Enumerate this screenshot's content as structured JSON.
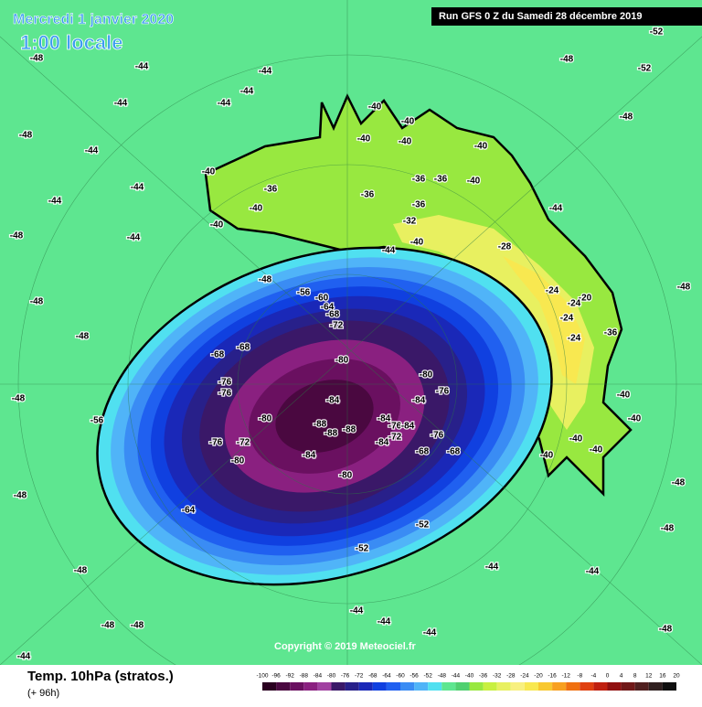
{
  "header": {
    "date": "Mercredi 1 janvier 2020",
    "time": "1:00 locale",
    "run": "Run GFS 0 Z du Samedi 28 décembre 2019"
  },
  "footer": {
    "title": "Temp. 10hPa (stratos.)",
    "lead": "(+ 96h)",
    "copyright": "Copyright © 2019 Meteociel.fr"
  },
  "legend": {
    "ticks": [
      -100,
      -96,
      -92,
      -88,
      -84,
      -80,
      -76,
      -72,
      -68,
      -64,
      -60,
      -56,
      -52,
      -48,
      -44,
      -40,
      -36,
      -32,
      -28,
      -24,
      -20,
      -16,
      -12,
      -8,
      -4,
      0,
      4,
      8,
      12,
      16,
      20
    ],
    "colors": [
      "#2a0020",
      "#4a0840",
      "#6a1060",
      "#8a2080",
      "#a040a0",
      "#3a1868",
      "#28208a",
      "#1a28b8",
      "#1040e0",
      "#2060f0",
      "#3a8cf4",
      "#50b4f8",
      "#50e0f0",
      "#5ee690",
      "#50d070",
      "#98e840",
      "#c8f040",
      "#e8f060",
      "#f8f080",
      "#f8e850",
      "#f8c830",
      "#f8a020",
      "#f07010",
      "#e04010",
      "#c02010",
      "#901010",
      "#701818",
      "#502020",
      "#302020",
      "#101010"
    ]
  },
  "contour_labels": [
    -48,
    -44,
    -44,
    -48,
    -52,
    -52,
    -44,
    -44,
    -44,
    -40,
    -40,
    -48,
    -48,
    -44,
    -40,
    -40,
    -40,
    -44,
    -40,
    -36,
    -36,
    -36,
    -36,
    -40,
    -44,
    -44,
    -40,
    -40,
    -32,
    -36,
    -44,
    -40,
    -28,
    -48,
    -44,
    -48,
    -56,
    -60,
    -64,
    -68,
    -72,
    -24,
    -20,
    -24,
    -24,
    -24,
    -36,
    -48,
    -48,
    -48,
    -68,
    -68,
    -80,
    -80,
    -76,
    -76,
    -76,
    -84,
    -84,
    -48,
    -56,
    -80,
    -88,
    -88,
    -88,
    -84,
    -76,
    -84,
    -76,
    -72,
    -84,
    -68,
    -68,
    -84,
    -76,
    -72,
    -80,
    -80,
    -40,
    -40,
    -40,
    -40,
    -40,
    -64,
    -52,
    -52,
    -48,
    -48,
    -44,
    -44,
    -44,
    -44,
    -44,
    -48,
    -48,
    -44,
    -48,
    -48,
    -48
  ]
}
